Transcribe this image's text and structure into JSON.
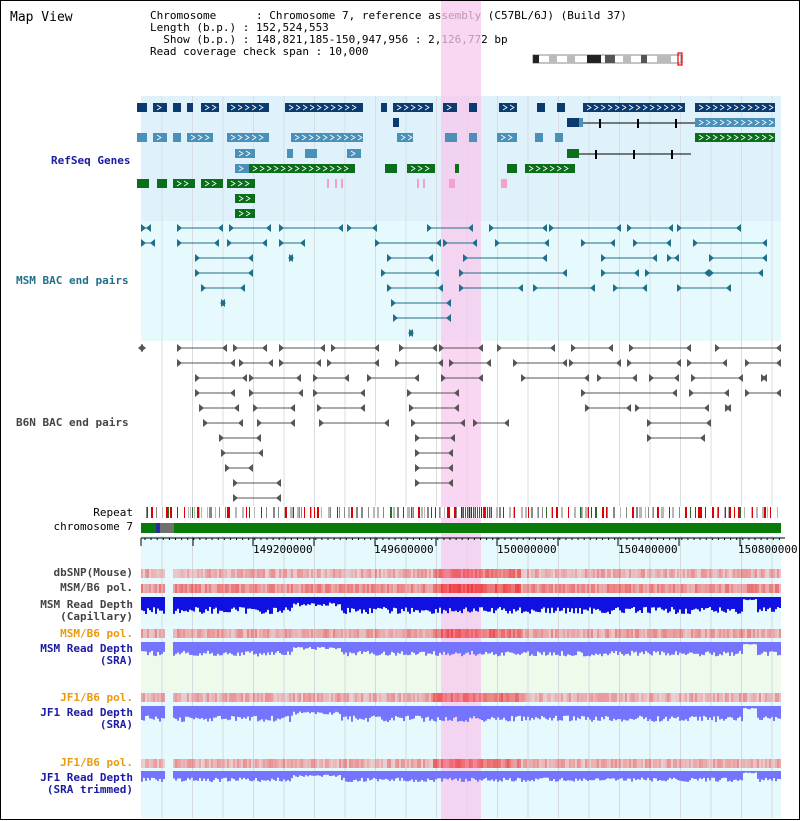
{
  "header": {
    "title": "Map View",
    "info_lines": [
      "Chromosome      : Chromosome 7, reference assembly (C57BL/6J) (Build 37)",
      "Length (b.p.) : 152,524,553",
      "  Show (b.p.) : 148,821,185-150,947,956 : 2,126,772 bp",
      "Read coverage check span : 10,000"
    ]
  },
  "tracks": {
    "refseq": "RefSeq Genes",
    "msm_bac": "MSM BAC end pairs",
    "b6n_bac": "B6N BAC end pairs",
    "repeat": "Repeat",
    "chromosome": "chromosome 7",
    "dbsnp": "dbSNP(Mouse)",
    "msm_b6_pol_1": "MSM/B6 pol.",
    "msm_read_depth_cap_1": "MSM Read Depth",
    "msm_read_depth_cap_2": "(Capillary)",
    "msm_b6_pol_2": "MSM/B6 pol.",
    "msm_read_depth_sra_1": "MSM Read Depth",
    "msm_read_depth_sra_2": "(SRA)",
    "jf1_b6_pol_1": "JF1/B6 pol.",
    "jf1_read_depth_sra_1": "JF1 Read Depth",
    "jf1_read_depth_sra_2": "(SRA)",
    "jf1_b6_pol_2": "JF1/B6 pol.",
    "jf1_read_depth_trim_1": "JF1 Read Depth",
    "jf1_read_depth_trim_2": "(SRA trimmed)"
  },
  "axis": {
    "ticks": [
      "149200000",
      "149600000",
      "150000000",
      "150400000",
      "150800000"
    ]
  },
  "colors": {
    "refseq_dark": "#0a3a6e",
    "refseq_mid": "#4a90b8",
    "refseq_green": "#0a6e1a",
    "refseq_pink": "#f6a0c8",
    "msm_bac": "#1f6f8a",
    "b6n_bac": "#555555",
    "highlight": "#f7c8ee",
    "chrom_green": "#087a08",
    "depth_dark": "#1010e0",
    "depth_light": "#7474ff",
    "pol_red": "#ee3333",
    "label_blue": "#1a1aa6",
    "label_teal": "#1f6f8a",
    "label_orange": "#e89a10",
    "label_gray": "#444444"
  }
}
